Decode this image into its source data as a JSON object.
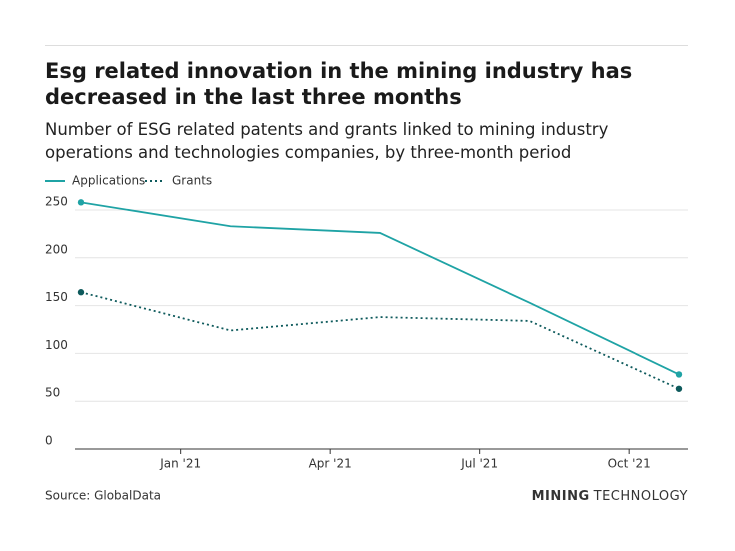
{
  "chart_data": {
    "type": "line",
    "title": "Esg related innovation in the mining industry has decreased in the last three months",
    "subtitle": "Number of ESG related patents and grants linked to mining industry operations and technologies companies, by three-month period",
    "x": [
      "2020-11",
      "2021-02",
      "2021-05",
      "2021-08",
      "2021-11"
    ],
    "series": [
      {
        "name": "Applications",
        "color": "#1fa3a5",
        "dash": "solid",
        "values": [
          258,
          233,
          226,
          153,
          78
        ]
      },
      {
        "name": "Grants",
        "color": "#0e5a5c",
        "dash": "dotted",
        "values": [
          164,
          124,
          138,
          134,
          63
        ]
      }
    ],
    "xlim": [
      "2020-11",
      "2021-11"
    ],
    "xticks": [
      {
        "value": "2021-01",
        "label": "Jan '21"
      },
      {
        "value": "2021-04",
        "label": "Apr '21"
      },
      {
        "value": "2021-07",
        "label": "Jul '21"
      },
      {
        "value": "2021-10",
        "label": "Oct '21"
      }
    ],
    "ylim": [
      0,
      250
    ],
    "yticks": [
      0,
      50,
      100,
      150,
      200,
      250
    ],
    "grid": true,
    "source": "Source: GlobalData",
    "logo": {
      "bold": "MINING",
      "light": "TECHNOLOGY"
    }
  }
}
